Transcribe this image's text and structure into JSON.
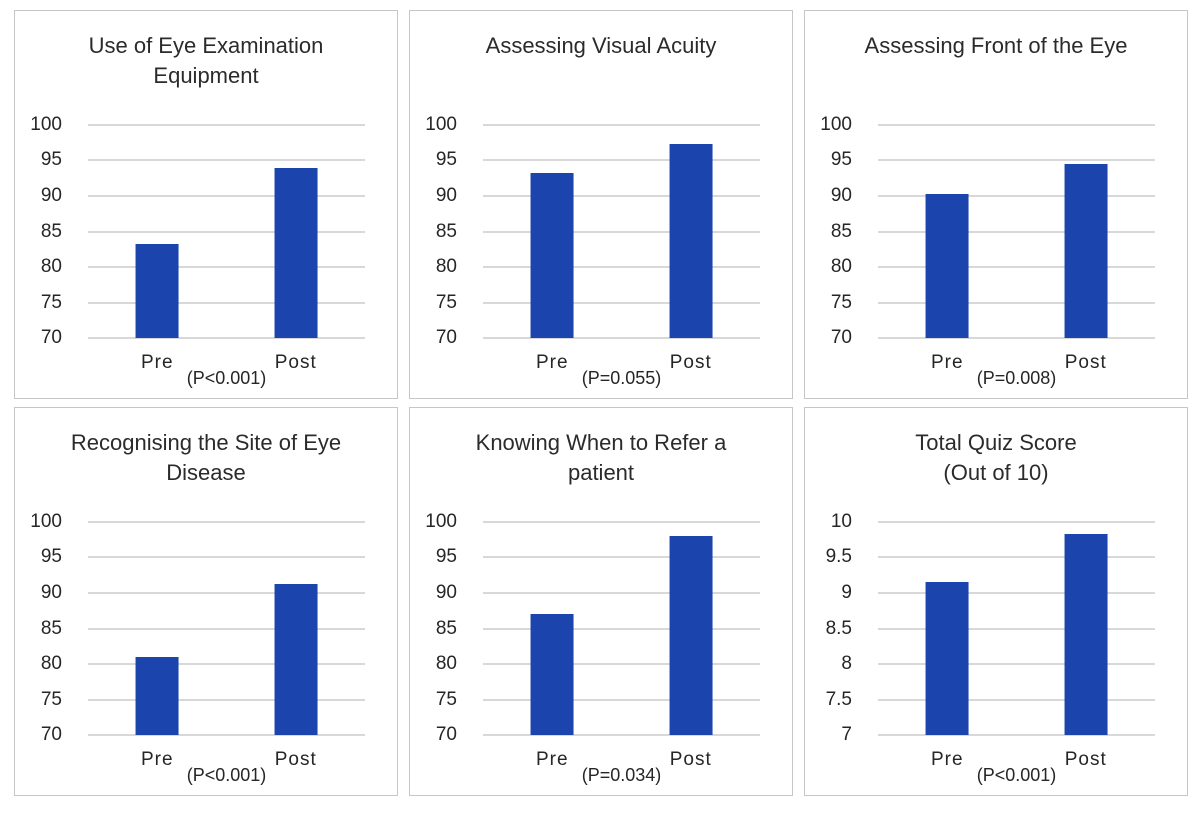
{
  "figure": {
    "background": "#FFFFFF",
    "panel_border_color": "#C6C6C6",
    "gridline_color": "#D8D8D8",
    "bar_color": "#1B45AC",
    "text_color": "#262626",
    "layout": "2 rows x 3 columns of bar chart panels"
  },
  "chart_data": [
    {
      "type": "bar",
      "title": "Use of Eye Examination Equipment",
      "title_lines": [
        "Use of Eye Examination",
        "Equipment"
      ],
      "categories": [
        "Pre",
        "Post"
      ],
      "values": [
        83.2,
        94
      ],
      "p_label": "(P<0.001)",
      "ylim": [
        70,
        100
      ],
      "yticks": [
        "100",
        "95",
        "90",
        "85",
        "80",
        "75",
        "70"
      ],
      "grid": true,
      "legend": false
    },
    {
      "type": "bar",
      "title": "Assessing Visual Acuity",
      "title_lines": [
        "Assessing Visual Acuity"
      ],
      "categories": [
        "Pre",
        "Post"
      ],
      "values": [
        93.2,
        97.3
      ],
      "p_label": "(P=0.055)",
      "ylim": [
        70,
        100
      ],
      "yticks": [
        "100",
        "95",
        "90",
        "85",
        "80",
        "75",
        "70"
      ],
      "grid": true,
      "legend": false
    },
    {
      "type": "bar",
      "title": "Assessing Front of the Eye",
      "title_lines": [
        "Assessing Front of the Eye"
      ],
      "categories": [
        "Pre",
        "Post"
      ],
      "values": [
        90.3,
        94.5
      ],
      "p_label": "(P=0.008)",
      "ylim": [
        70,
        100
      ],
      "yticks": [
        "100",
        "95",
        "90",
        "85",
        "80",
        "75",
        "70"
      ],
      "grid": true,
      "legend": false
    },
    {
      "type": "bar",
      "title": "Recognising the Site of Eye Disease",
      "title_lines": [
        "Recognising the Site of Eye",
        "Disease"
      ],
      "categories": [
        "Pre",
        "Post"
      ],
      "values": [
        81,
        91.2
      ],
      "p_label": "(P<0.001)",
      "ylim": [
        70,
        100
      ],
      "yticks": [
        "100",
        "95",
        "90",
        "85",
        "80",
        "75",
        "70"
      ],
      "grid": true,
      "legend": false
    },
    {
      "type": "bar",
      "title": "Knowing When to Refer a patient",
      "title_lines": [
        "Knowing When to Refer a",
        "patient"
      ],
      "categories": [
        "Pre",
        "Post"
      ],
      "values": [
        87,
        98
      ],
      "p_label": "(P=0.034)",
      "ylim": [
        70,
        100
      ],
      "yticks": [
        "100",
        "95",
        "90",
        "85",
        "80",
        "75",
        "70"
      ],
      "grid": true,
      "legend": false
    },
    {
      "type": "bar",
      "title": "Total Quiz Score (Out of 10)",
      "title_lines": [
        "Total Quiz Score",
        "(Out of 10)"
      ],
      "categories": [
        "Pre",
        "Post"
      ],
      "values": [
        9.15,
        9.83
      ],
      "p_label": "(P<0.001)",
      "ylim": [
        7,
        10
      ],
      "yticks": [
        "10",
        "9.5",
        "9",
        "8.5",
        "8",
        "7.5",
        "7"
      ],
      "grid": true,
      "legend": false
    }
  ]
}
